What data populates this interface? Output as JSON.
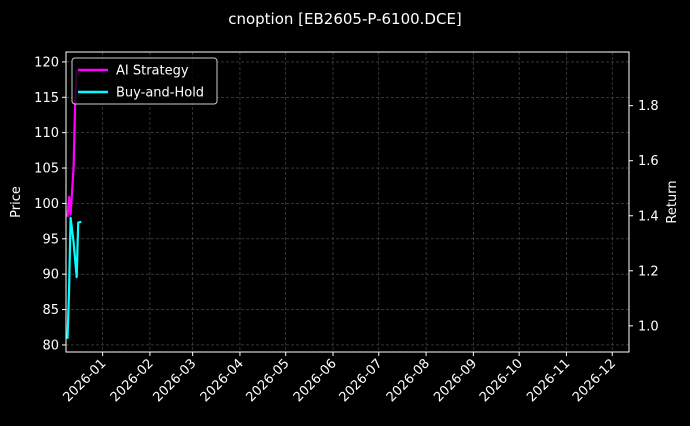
{
  "chart_data": {
    "type": "line",
    "title": "cnoption [EB2605-P-6100.DCE]",
    "ylabel": "Price",
    "y2label": "Return",
    "xlim": [
      "2025-12-08",
      "2026-12-12"
    ],
    "ylim": [
      79.0,
      121.4
    ],
    "y2lim": [
      0.905,
      1.995
    ],
    "xticks": [
      "2026-01",
      "2026-02",
      "2026-03",
      "2026-04",
      "2026-05",
      "2026-06",
      "2026-07",
      "2026-08",
      "2026-09",
      "2026-10",
      "2026-11",
      "2026-12"
    ],
    "yticks": [
      80,
      85,
      90,
      95,
      100,
      105,
      110,
      115,
      120
    ],
    "y2ticks": [
      1.0,
      1.2,
      1.4,
      1.6,
      1.8
    ],
    "grid": true,
    "legend": "top-left",
    "series": [
      {
        "name": "AI Strategy",
        "axis": "right",
        "color": "#ff00ff",
        "x": [
          "2025-12-09",
          "2025-12-10",
          "2025-12-11",
          "2025-12-13",
          "2025-12-14",
          "2025-12-15"
        ],
        "values": [
          1.396,
          1.468,
          1.404,
          1.577,
          1.82,
          1.93
        ]
      },
      {
        "name": "Buy-and-Hold",
        "axis": "right",
        "color": "#00ffff",
        "x": [
          "2025-12-09",
          "2025-12-10",
          "2025-12-11",
          "2025-12-13",
          "2025-12-15",
          "2025-12-16",
          "2025-12-18"
        ],
        "values": [
          0.953,
          1.133,
          1.393,
          1.303,
          1.177,
          1.375,
          1.378
        ]
      }
    ]
  }
}
